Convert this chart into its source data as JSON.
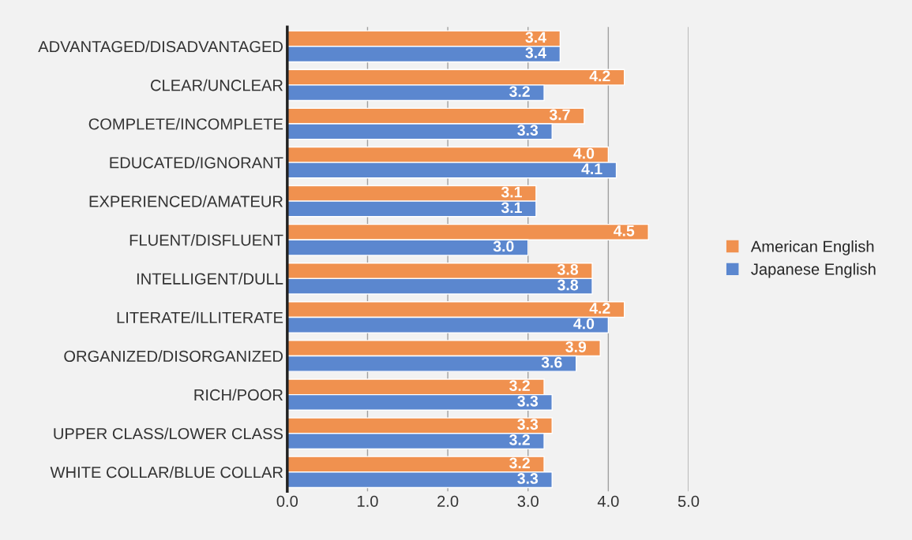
{
  "chart_data": {
    "type": "bar",
    "orientation": "horizontal",
    "categories": [
      "ADVANTAGED/DISADVANTAGED",
      "CLEAR/UNCLEAR",
      "COMPLETE/INCOMPLETE",
      "EDUCATED/IGNORANT",
      "EXPERIENCED/AMATEUR",
      "FLUENT/DISFLUENT",
      "INTELLIGENT/DULL",
      "LITERATE/ILLITERATE",
      "ORGANIZED/DISORGANIZED",
      "RICH/POOR",
      "UPPER CLASS/LOWER CLASS",
      "WHITE COLLAR/BLUE COLLAR"
    ],
    "series": [
      {
        "name": "American English",
        "color": "#f0914f",
        "values": [
          3.4,
          4.2,
          3.7,
          4.0,
          3.1,
          4.5,
          3.8,
          4.2,
          3.9,
          3.2,
          3.3,
          3.2
        ],
        "value_labels": [
          "3.4",
          "4.2",
          "3.7",
          "4.0",
          "3.1",
          "4.5",
          "3.8",
          "4.2",
          "3.9",
          "3.2",
          "3.3",
          "3.2"
        ]
      },
      {
        "name": "Japanese English",
        "color": "#5b87cf",
        "values": [
          3.4,
          3.2,
          3.3,
          4.1,
          3.1,
          3.0,
          3.8,
          4.0,
          3.6,
          3.3,
          3.2,
          3.3
        ],
        "value_labels": [
          "3.4",
          "3.2",
          "3.3",
          "4.1",
          "3.1",
          "3.0",
          "3.8",
          "4.0",
          "3.6",
          "3.3",
          "3.2",
          "3.3"
        ]
      }
    ],
    "xlim": [
      0,
      5
    ],
    "xticks": [
      {
        "value": 0,
        "label": "0.0"
      },
      {
        "value": 1,
        "label": "1.0"
      },
      {
        "value": 2,
        "label": "2.0"
      },
      {
        "value": 3,
        "label": "3.0"
      },
      {
        "value": 4,
        "label": "4.0"
      },
      {
        "value": 5,
        "label": "5.0"
      }
    ],
    "grid": "x",
    "legend": "right"
  }
}
